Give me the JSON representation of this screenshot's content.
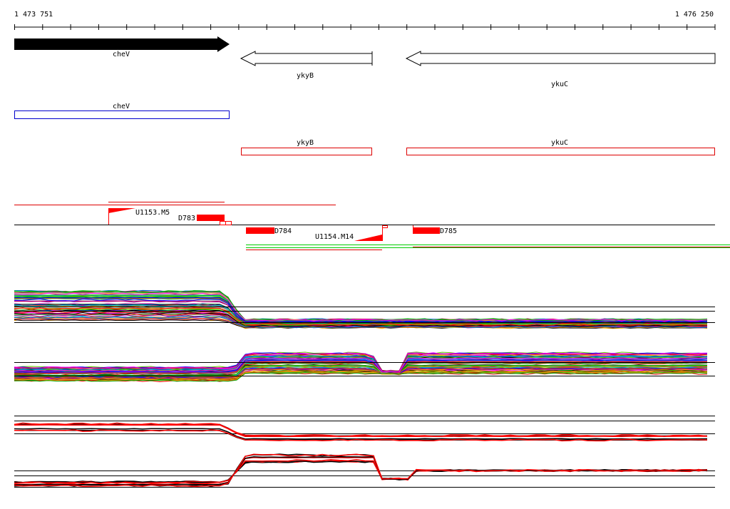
{
  "ruler": {
    "start": "1 473 751",
    "end": "1 476 250"
  },
  "genes": [
    {
      "label": "cheV"
    },
    {
      "label": "ykyB"
    },
    {
      "label": "ykuC"
    }
  ],
  "cds": [
    {
      "label": "cheV"
    },
    {
      "label": "ykyB"
    },
    {
      "label": "ykuC"
    }
  ],
  "features": [
    {
      "label": "U1153.M5"
    },
    {
      "label": "D783"
    },
    {
      "label": "D784"
    },
    {
      "label": "U1154.M14"
    },
    {
      "label": "D785"
    }
  ]
}
